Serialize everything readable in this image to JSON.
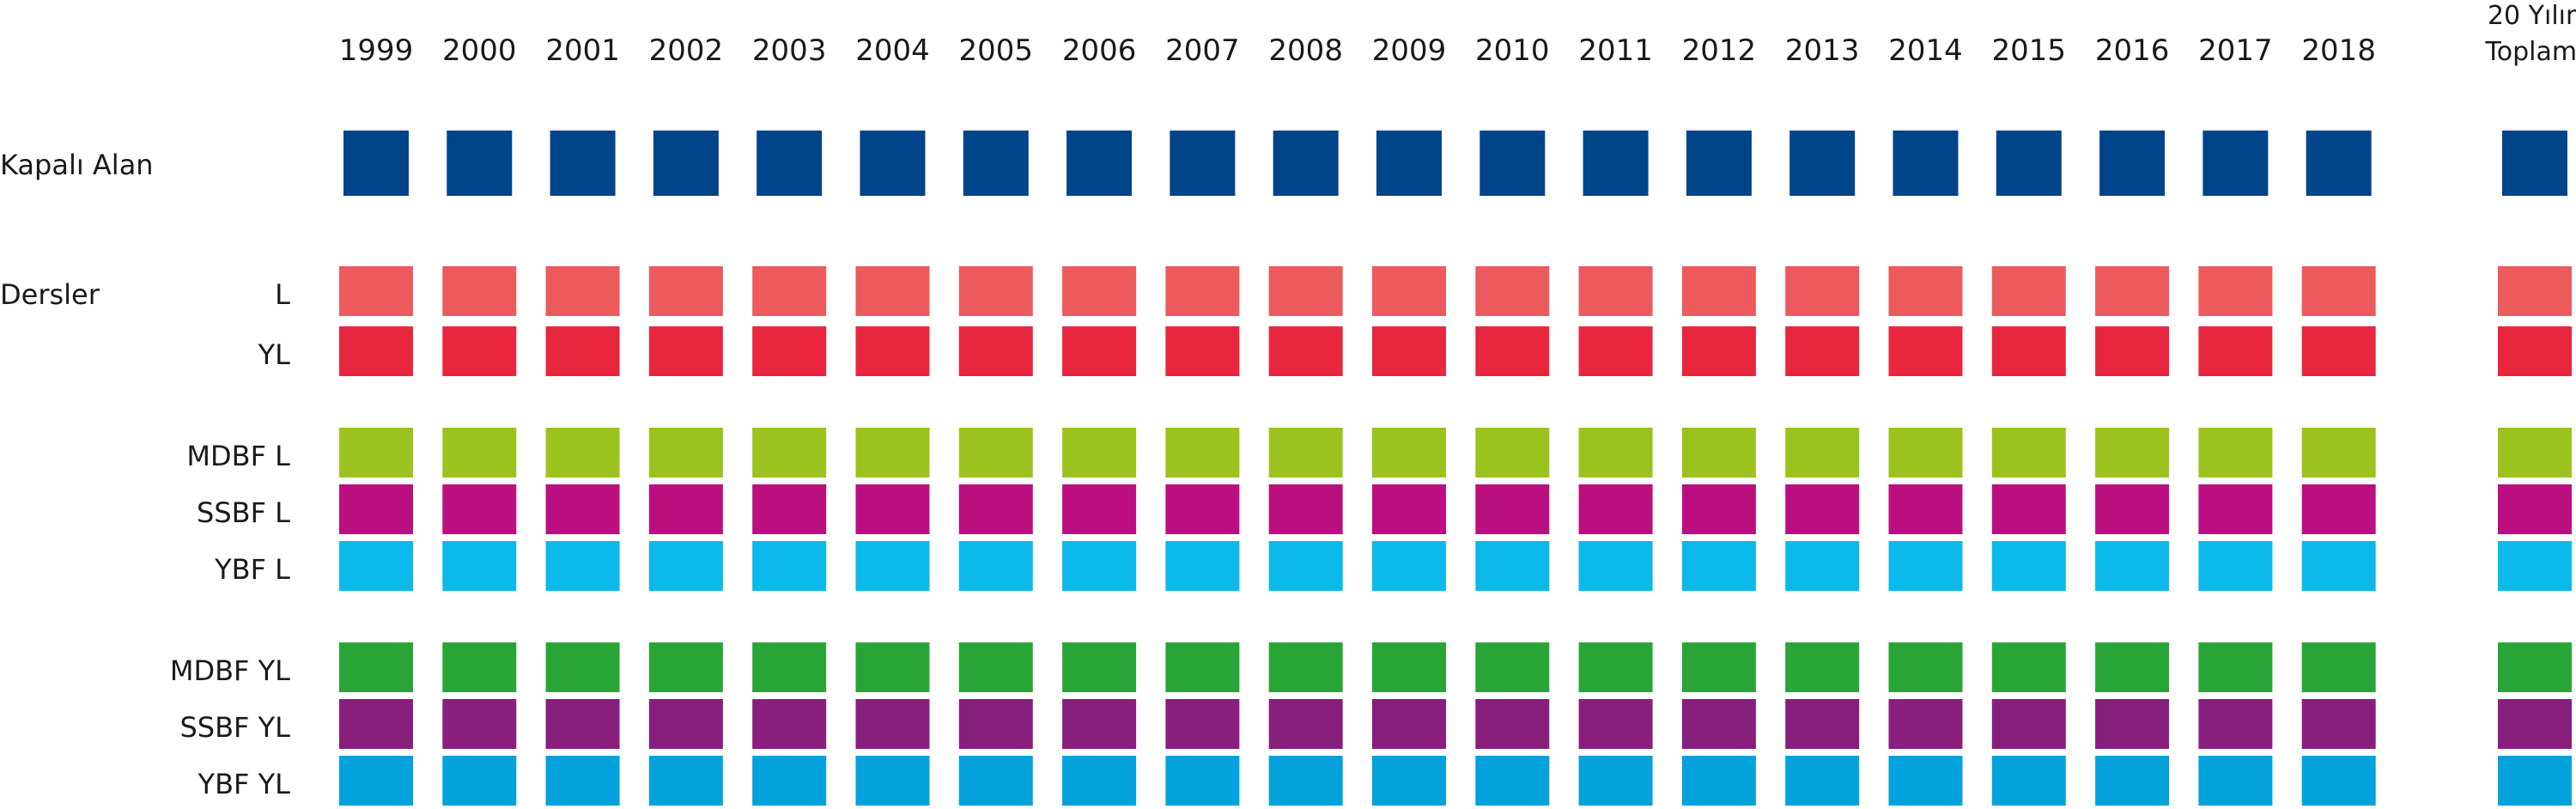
{
  "chart_data": {
    "type": "table",
    "columns": [
      "1999",
      "2000",
      "2001",
      "2002",
      "2003",
      "2004",
      "2005",
      "2006",
      "2007",
      "2008",
      "2009",
      "2010",
      "2011",
      "2012",
      "2013",
      "2014",
      "2015",
      "2016",
      "2017",
      "2018"
    ],
    "total_column": [
      "20 Yılın",
      "Toplamı"
    ],
    "rows": [
      {
        "group": "Kapalı Alan",
        "label": "",
        "color": "#00448A"
      },
      {
        "group": "Dersler",
        "label": "L",
        "color": "#EC5A5E"
      },
      {
        "group": "",
        "label": "YL",
        "color": "#E8273F"
      },
      {
        "group": "",
        "label": "MDBF  L",
        "color": "#9BC31E"
      },
      {
        "group": "",
        "label": "SSBF  L",
        "color": "#BC0F7F"
      },
      {
        "group": "",
        "label": "YBF  L",
        "color": "#0BB9EB"
      },
      {
        "group": "",
        "label": "MDBF  YL",
        "color": "#29A538"
      },
      {
        "group": "",
        "label": "SSBF  YL",
        "color": "#881F7D"
      },
      {
        "group": "",
        "label": "YBF  YL",
        "color": "#03A2DC"
      }
    ]
  }
}
